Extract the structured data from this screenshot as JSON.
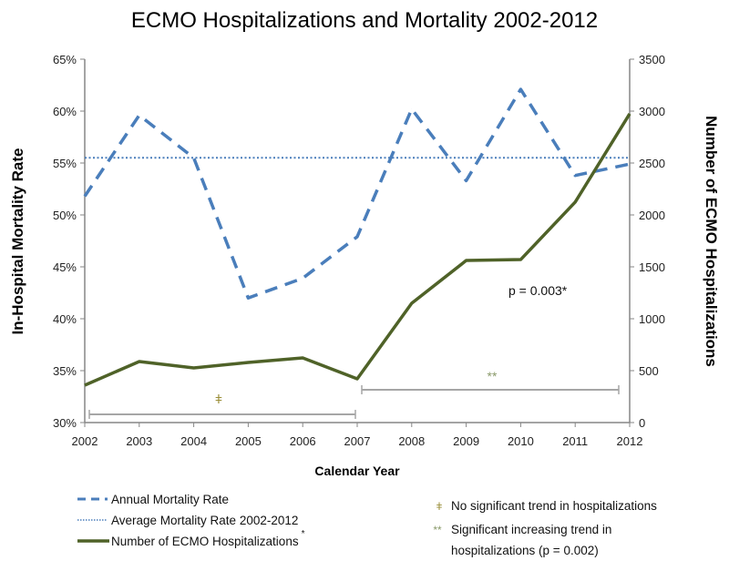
{
  "chart_data": {
    "type": "line",
    "title": "ECMO Hospitalizations and Mortality 2002-2012",
    "xlabel": "Calendar Year",
    "ylabel": "In-Hospital Mortality Rate",
    "y2label": "Number of ECMO Hospitalizations",
    "x": [
      2002,
      2003,
      2004,
      2005,
      2006,
      2007,
      2008,
      2009,
      2010,
      2011,
      2012
    ],
    "x_tick_labels": [
      "2002",
      "2003",
      "2004",
      "2005",
      "2006",
      "2007",
      "2008",
      "2009",
      "2010",
      "2011",
      "2012"
    ],
    "ylim": [
      30,
      65
    ],
    "y_ticks": [
      "30%",
      "35%",
      "40%",
      "45%",
      "50%",
      "55%",
      "60%",
      "65%"
    ],
    "y2lim": [
      0,
      3500
    ],
    "y2_ticks": [
      "0",
      "500",
      "1000",
      "1500",
      "2000",
      "2500",
      "3000",
      "3500"
    ],
    "grid": false,
    "series": [
      {
        "name": "Annual Mortality Rate",
        "axis": "left",
        "style": "dashed",
        "color": "#4a7ebb",
        "values": [
          51.8,
          59.6,
          55.5,
          42.0,
          43.9,
          47.9,
          60.2,
          53.3,
          62.1,
          53.8,
          54.9
        ]
      },
      {
        "name": "Average Mortality Rate 2002-2012",
        "axis": "left",
        "style": "dotted",
        "color": "#4a7ebb",
        "values": [
          55.5,
          55.5,
          55.5,
          55.5,
          55.5,
          55.5,
          55.5,
          55.5,
          55.5,
          55.5,
          55.5
        ]
      },
      {
        "name": "Number of ECMO Hospitalizations",
        "legend_suffix": "*",
        "axis": "right",
        "style": "solid",
        "color": "#4f6228",
        "values": [
          360,
          588,
          526,
          579,
          623,
          421,
          1149,
          1561,
          1570,
          2123,
          2974
        ]
      }
    ],
    "annotations": {
      "p_value": "p = 0.003*",
      "bracket1": {
        "symbol": "ǂ",
        "from": 2002,
        "to": 2007
      },
      "bracket2": {
        "symbol": "**",
        "from": 2007,
        "to": 2012
      }
    },
    "notes": [
      {
        "symbol": "ǂ",
        "text": "No significant trend in hospitalizations"
      },
      {
        "symbol": "**",
        "text": "Significant increasing trend in",
        "text2": "hospitalizations (p = 0.002)"
      }
    ],
    "legend_position": "bottom"
  }
}
